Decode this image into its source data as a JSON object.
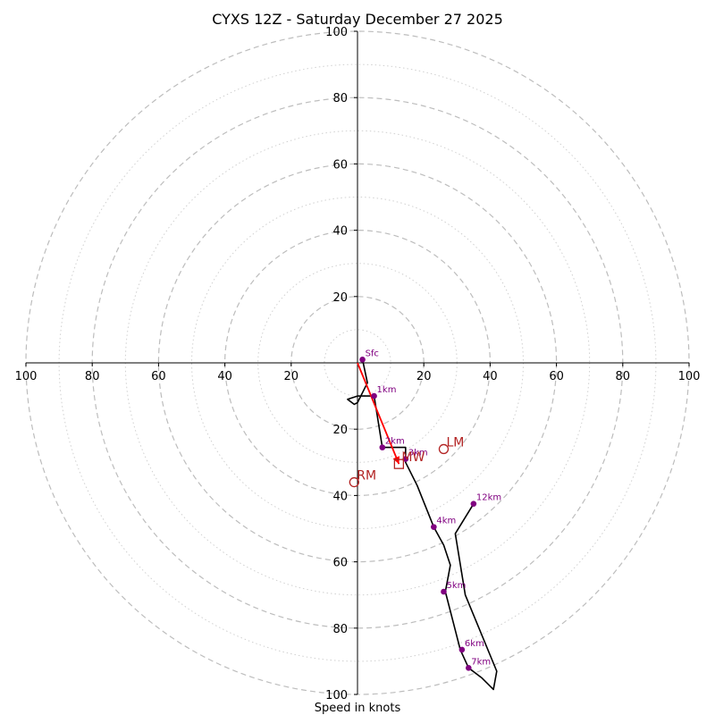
{
  "chart_data": {
    "type": "hodograph",
    "title": "CYXS 12Z - Saturday December 27 2025",
    "xlabel": "Speed in knots",
    "range": 100,
    "rings": [
      10,
      20,
      30,
      40,
      50,
      60,
      70,
      80,
      90,
      100
    ],
    "ticks": [
      20,
      40,
      60,
      80,
      100
    ],
    "x_tick_labels": [
      "100",
      "80",
      "60",
      "40",
      "20",
      "20",
      "40",
      "60",
      "80",
      "100"
    ],
    "y_tick_labels_up": [
      "20",
      "40",
      "60",
      "80",
      "100"
    ],
    "y_tick_labels_down": [
      "20",
      "40",
      "60",
      "80",
      "100"
    ],
    "trace": [
      [
        1.5,
        1.0
      ],
      [
        3.0,
        -6.0
      ],
      [
        0.0,
        -12.0
      ],
      [
        -1.0,
        -12.5
      ],
      [
        -3.0,
        -11.0
      ],
      [
        0.0,
        -10.0
      ],
      [
        5.0,
        -10.0
      ],
      [
        7.5,
        -25.5
      ],
      [
        14.5,
        -25.5
      ],
      [
        14.5,
        -30.0
      ],
      [
        18.0,
        -37.0
      ],
      [
        23.0,
        -49.5
      ],
      [
        26.0,
        -55.0
      ],
      [
        28.0,
        -61.0
      ],
      [
        26.5,
        -69.0
      ],
      [
        31.0,
        -86.5
      ],
      [
        33.5,
        -92.0
      ],
      [
        37.5,
        -95.0
      ],
      [
        41.0,
        -98.5
      ],
      [
        42.0,
        -93.0
      ],
      [
        32.5,
        -70.0
      ],
      [
        29.5,
        -51.5
      ],
      [
        35.0,
        -42.5
      ]
    ],
    "height_markers": [
      {
        "label": "Sfc",
        "u": 1.5,
        "v": 1.0
      },
      {
        "label": "1km",
        "u": 5.0,
        "v": -10.0
      },
      {
        "label": "2km",
        "u": 7.5,
        "v": -25.5
      },
      {
        "label": "3km",
        "u": 14.5,
        "v": -29.0
      },
      {
        "label": "4km",
        "u": 23.0,
        "v": -49.5
      },
      {
        "label": "5km",
        "u": 26.0,
        "v": -69.0
      },
      {
        "label": "6km",
        "u": 31.5,
        "v": -86.5
      },
      {
        "label": "7km",
        "u": 33.5,
        "v": -92.0
      },
      {
        "label": "12km",
        "u": 35.0,
        "v": -42.5
      }
    ],
    "mean_wind_vector": {
      "from": [
        0,
        0
      ],
      "to": [
        12.5,
        -30.5
      ],
      "color": "#ff0000"
    },
    "motion_markers": [
      {
        "label": "RM",
        "u": -1.0,
        "v": -36.0,
        "shape": "circle"
      },
      {
        "label": "LM",
        "u": 26.0,
        "v": -26.0,
        "shape": "circle"
      },
      {
        "label": "MW",
        "u": 12.5,
        "v": -30.5,
        "shape": "square"
      }
    ],
    "colors": {
      "trace": "#000000",
      "markers": "#800080",
      "motion": "#b22222",
      "mean_wind": "#ff0000",
      "ring_major": "#bdbdbd",
      "ring_minor": "#d0d0d0"
    }
  }
}
